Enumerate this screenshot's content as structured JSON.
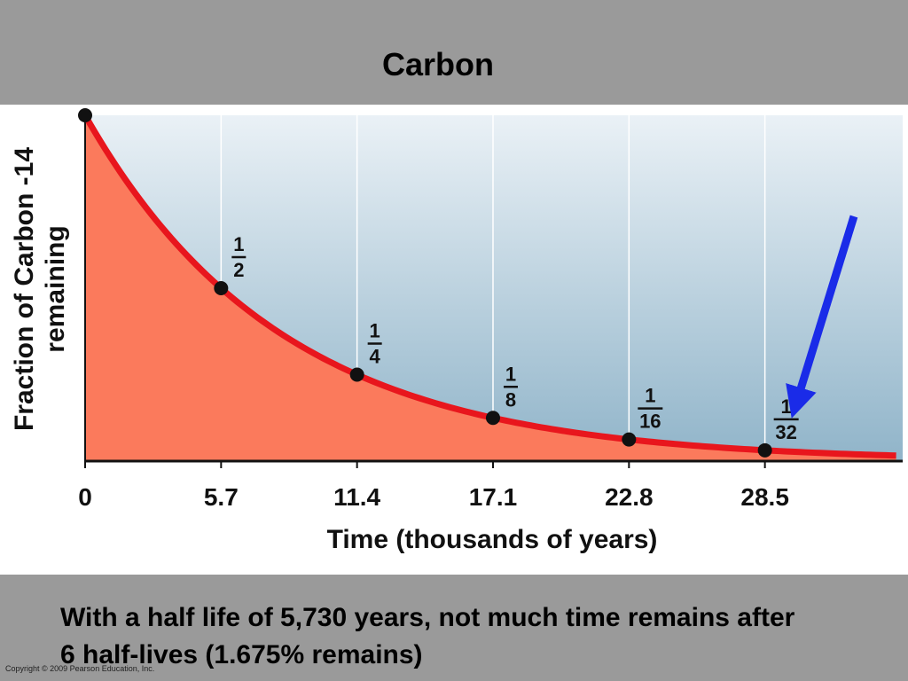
{
  "slide": {
    "title": "Carbon",
    "copyright": "Copyright © 2009 Pearson Education, Inc.",
    "caption_line1": "With a half life of 5,730 years, not much time remains after",
    "caption_line2": "6 half-lives (1.675% remains)"
  },
  "colors": {
    "curve": "#e8161d",
    "area_fill": "#fb7a5c",
    "arrow": "#1a2be8",
    "point": "#111111",
    "sky_top": "#eaf1f6",
    "sky_bottom": "#90b4c9"
  },
  "chart_data": {
    "type": "line",
    "title": "",
    "xlabel": "Time (thousands of years)",
    "ylabel_line1": "Fraction of Carbon -14",
    "ylabel_line2": "remaining",
    "x_ticks": [
      "0",
      "5.7",
      "11.4",
      "17.1",
      "22.8",
      "28.5"
    ],
    "xlim": [
      0,
      34
    ],
    "ylim": [
      0,
      1
    ],
    "grid": "vertical",
    "series": [
      {
        "x": [
          0,
          5.7,
          11.4,
          17.1,
          22.8,
          28.5
        ],
        "y": [
          1,
          0.5,
          0.25,
          0.125,
          0.0625,
          0.03125
        ]
      }
    ],
    "point_labels": [
      {
        "num": "1",
        "den": "2"
      },
      {
        "num": "1",
        "den": "4"
      },
      {
        "num": "1",
        "den": "8"
      },
      {
        "num": "1",
        "den": "16"
      },
      {
        "num": "1",
        "den": "32"
      }
    ],
    "annotation": "arrow pointing to 1/32"
  }
}
